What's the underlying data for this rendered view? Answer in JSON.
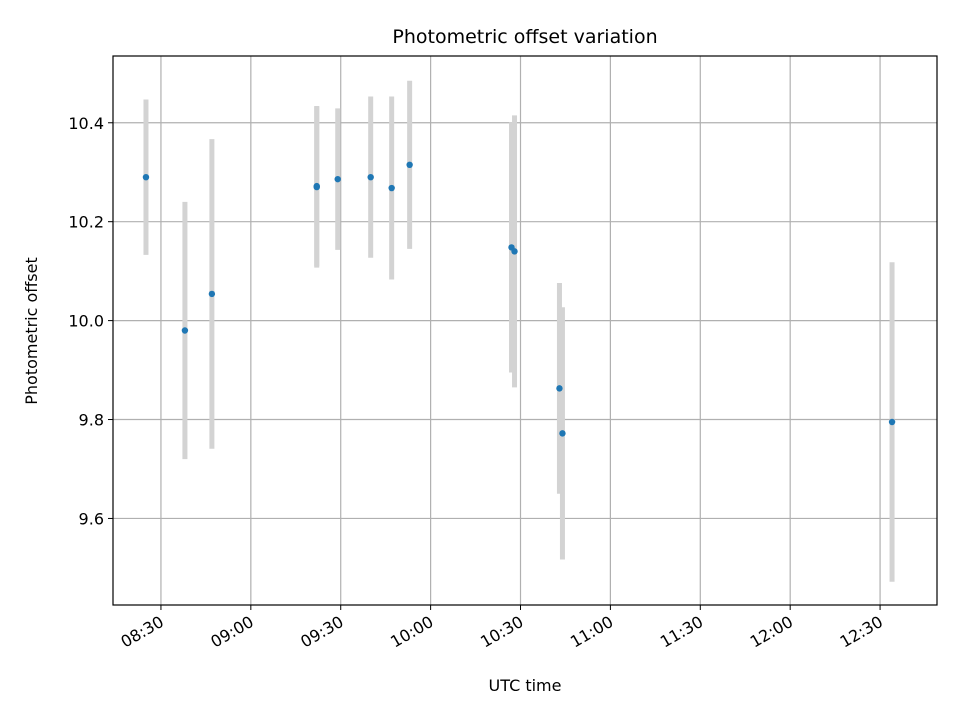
{
  "chart_data": {
    "type": "scatter",
    "title": "Photometric offset variation",
    "xlabel": "UTC time",
    "ylabel": "Photometric offset",
    "x_axis": "time (HH:MM, same day)",
    "xlim": [
      "08:14",
      "12:49"
    ],
    "ylim": [
      9.425,
      10.535
    ],
    "x_ticks": [
      "08:30",
      "09:00",
      "09:30",
      "10:00",
      "10:30",
      "11:00",
      "11:30",
      "12:00",
      "12:30"
    ],
    "y_ticks": [
      "9.6",
      "9.8",
      "10.0",
      "10.2",
      "10.4"
    ],
    "y_tick_values": [
      9.6,
      9.8,
      10.0,
      10.2,
      10.4
    ],
    "grid": true,
    "colors": {
      "marker": "#1f77b4",
      "errorbar": "#d3d3d3",
      "grid": "#b0b0b0"
    },
    "points": [
      {
        "x": "08:25",
        "y": 10.29,
        "yerr": 0.157
      },
      {
        "x": "08:38",
        "y": 9.98,
        "yerr": 0.26
      },
      {
        "x": "08:47",
        "y": 10.054,
        "yerr": 0.313
      },
      {
        "x": "09:22",
        "y": 10.272,
        "yerr": 0.162
      },
      {
        "x": "09:22",
        "y": 10.27,
        "yerr": 0.163
      },
      {
        "x": "09:29",
        "y": 10.286,
        "yerr": 0.143
      },
      {
        "x": "09:40",
        "y": 10.29,
        "yerr": 0.163
      },
      {
        "x": "09:47",
        "y": 10.268,
        "yerr": 0.185
      },
      {
        "x": "09:53",
        "y": 10.315,
        "yerr": 0.17
      },
      {
        "x": "10:27",
        "y": 10.148,
        "yerr": 0.253
      },
      {
        "x": "10:28",
        "y": 10.14,
        "yerr": 0.275
      },
      {
        "x": "10:43",
        "y": 9.863,
        "yerr": 0.213
      },
      {
        "x": "10:44",
        "y": 9.772,
        "yerr": 0.255
      },
      {
        "x": "12:34",
        "y": 9.795,
        "yerr": 0.323
      }
    ]
  }
}
